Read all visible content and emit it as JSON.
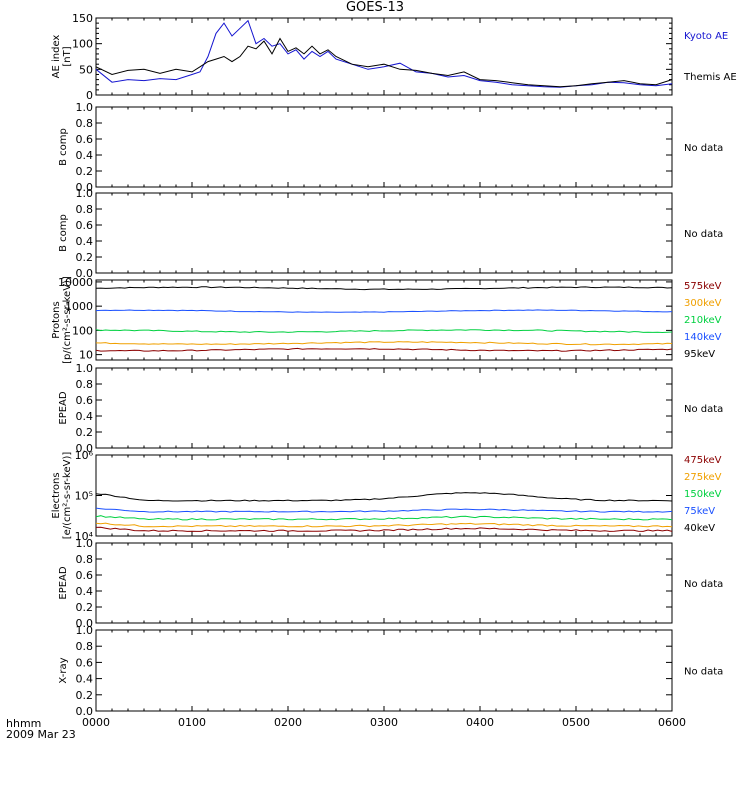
{
  "page": {
    "title": "GOES-13",
    "time_label": "hhmm",
    "date_label": "2009 Mar 23"
  },
  "colors": {
    "black": "#000000",
    "blue": "#1515d0",
    "kyoto_ae": "#1515d0",
    "p575": "#8b0000",
    "p300": "#f0a000",
    "p210": "#00d040",
    "p140": "#1a50ff",
    "p95": "#000000",
    "e475": "#8b0000",
    "e275": "#f0a000",
    "e150": "#00d040",
    "e75": "#1a50ff",
    "e40": "#000000"
  },
  "chart_data": [
    {
      "id": "ae",
      "type": "line",
      "ylabel": [
        "AE index",
        "[nT]"
      ],
      "ylim": [
        0,
        150
      ],
      "yticks": [
        0,
        50,
        100,
        150
      ],
      "xlim": [
        "0000",
        "0600"
      ],
      "series": [
        {
          "name": "Kyoto AE",
          "color": "#1515d0",
          "x": [
            "0000",
            "0010",
            "0020",
            "0030",
            "0040",
            "0050",
            "0100",
            "0105",
            "0110",
            "0115",
            "0120",
            "0125",
            "0130",
            "0135",
            "0140",
            "0145",
            "0150",
            "0155",
            "0200",
            "0205",
            "0210",
            "0215",
            "0220",
            "0225",
            "0230",
            "0240",
            "0250",
            "0300",
            "0310",
            "0320",
            "0330",
            "0340",
            "0350",
            "0400",
            "0410",
            "0420",
            "0430",
            "0440",
            "0450",
            "0500",
            "0510",
            "0520",
            "0530",
            "0540",
            "0550",
            "0600"
          ],
          "y": [
            50,
            25,
            30,
            28,
            32,
            30,
            40,
            45,
            75,
            120,
            140,
            115,
            130,
            145,
            100,
            110,
            95,
            100,
            80,
            88,
            70,
            85,
            75,
            85,
            70,
            60,
            50,
            55,
            62,
            45,
            42,
            35,
            38,
            28,
            25,
            20,
            18,
            16,
            15,
            18,
            20,
            25,
            24,
            20,
            18,
            22
          ]
        },
        {
          "name": "Themis AE",
          "color": "#000000",
          "x": [
            "0000",
            "0010",
            "0020",
            "0030",
            "0040",
            "0050",
            "0100",
            "0105",
            "0110",
            "0115",
            "0120",
            "0125",
            "0130",
            "0135",
            "0140",
            "0145",
            "0150",
            "0155",
            "0200",
            "0205",
            "0210",
            "0215",
            "0220",
            "0225",
            "0230",
            "0240",
            "0250",
            "0300",
            "0310",
            "0320",
            "0330",
            "0340",
            "0350",
            "0400",
            "0410",
            "0420",
            "0430",
            "0440",
            "0450",
            "0500",
            "0510",
            "0520",
            "0530",
            "0540",
            "0550",
            "0600"
          ],
          "y": [
            55,
            40,
            48,
            50,
            42,
            50,
            45,
            55,
            65,
            70,
            75,
            65,
            75,
            95,
            90,
            105,
            80,
            110,
            85,
            92,
            80,
            95,
            80,
            88,
            75,
            60,
            55,
            60,
            50,
            48,
            42,
            38,
            45,
            30,
            28,
            24,
            20,
            18,
            16,
            18,
            22,
            25,
            28,
            22,
            20,
            30
          ]
        }
      ]
    },
    {
      "id": "b1",
      "type": "line",
      "ylabel": [
        "B comp"
      ],
      "ylim": [
        0,
        1
      ],
      "yticks": [
        "0.0",
        "0.2",
        "0.4",
        "0.6",
        "0.8",
        "1.0"
      ],
      "note": "No data",
      "series": []
    },
    {
      "id": "b2",
      "type": "line",
      "ylabel": [
        "B comp"
      ],
      "ylim": [
        0,
        1
      ],
      "yticks": [
        "0.0",
        "0.2",
        "0.4",
        "0.6",
        "0.8",
        "1.0"
      ],
      "note": "No data",
      "series": []
    },
    {
      "id": "protons",
      "type": "line",
      "log": true,
      "ylabel": [
        "Protons",
        "[p/(cm²-s-sr-keV)]"
      ],
      "ylim": [
        6,
        12000
      ],
      "yticks": [
        "10",
        "100",
        "1000",
        "10000"
      ],
      "series": [
        {
          "name": "575keV",
          "color": "#000000",
          "level": 5500,
          "jitter": 0.04
        },
        {
          "name": "300keV",
          "color": "#1a50ff",
          "level": 620,
          "jitter": 0.03
        },
        {
          "name": "210keV",
          "color": "#00d040",
          "level": 95,
          "jitter": 0.05
        },
        {
          "name": "140keV",
          "color": "#f0a000",
          "level": 30,
          "jitter": 0.05
        },
        {
          "name": "95keV",
          "color": "#8b0000",
          "level": 16,
          "jitter": 0.05
        }
      ],
      "legend": [
        {
          "label": "575keV",
          "color": "#8b0000"
        },
        {
          "label": "300keV",
          "color": "#f0a000"
        },
        {
          "label": "210keV",
          "color": "#00d040"
        },
        {
          "label": "140keV",
          "color": "#1a50ff"
        },
        {
          "label": "95keV",
          "color": "#000000"
        }
      ]
    },
    {
      "id": "epead1",
      "type": "line",
      "ylabel": [
        "EPEAD"
      ],
      "ylim": [
        0,
        1
      ],
      "yticks": [
        "0.0",
        "0.2",
        "0.4",
        "0.6",
        "0.8",
        "1.0"
      ],
      "note": "No data",
      "series": []
    },
    {
      "id": "electrons",
      "type": "line",
      "log": true,
      "ylabel": [
        "Electrons",
        "[e/(cm²-s-sr-keV)]"
      ],
      "ylim": [
        10000,
        1000000
      ],
      "yticks": [
        "10⁴",
        "10⁵",
        "10⁶"
      ],
      "series": [
        {
          "name": "40keV",
          "color": "#000000",
          "level": 75000,
          "jitter": 0.03
        },
        {
          "name": "75keV",
          "color": "#1a50ff",
          "level": 40000,
          "jitter": 0.03
        },
        {
          "name": "150keV",
          "color": "#00d040",
          "level": 26000,
          "jitter": 0.04
        },
        {
          "name": "275keV",
          "color": "#f0a000",
          "level": 17500,
          "jitter": 0.04
        },
        {
          "name": "475keV",
          "color": "#8b0000",
          "level": 13500,
          "jitter": 0.04
        }
      ],
      "legend": [
        {
          "label": "475keV",
          "color": "#8b0000"
        },
        {
          "label": "275keV",
          "color": "#f0a000"
        },
        {
          "label": "150keV",
          "color": "#00d040"
        },
        {
          "label": "75keV",
          "color": "#1a50ff"
        },
        {
          "label": "40keV",
          "color": "#000000"
        }
      ]
    },
    {
      "id": "epead2",
      "type": "line",
      "ylabel": [
        "EPEAD"
      ],
      "ylim": [
        0,
        1
      ],
      "yticks": [
        "0.0",
        "0.2",
        "0.4",
        "0.6",
        "0.8",
        "1.0"
      ],
      "note": "No data",
      "series": []
    },
    {
      "id": "xray",
      "type": "line",
      "ylabel": [
        "X-ray"
      ],
      "ylim": [
        0,
        1
      ],
      "yticks": [
        "0.0",
        "0.2",
        "0.4",
        "0.6",
        "0.8",
        "1.0"
      ],
      "note": "No data",
      "series": [],
      "xticks": [
        "0000",
        "0100",
        "0200",
        "0300",
        "0400",
        "0500",
        "0600"
      ]
    }
  ]
}
